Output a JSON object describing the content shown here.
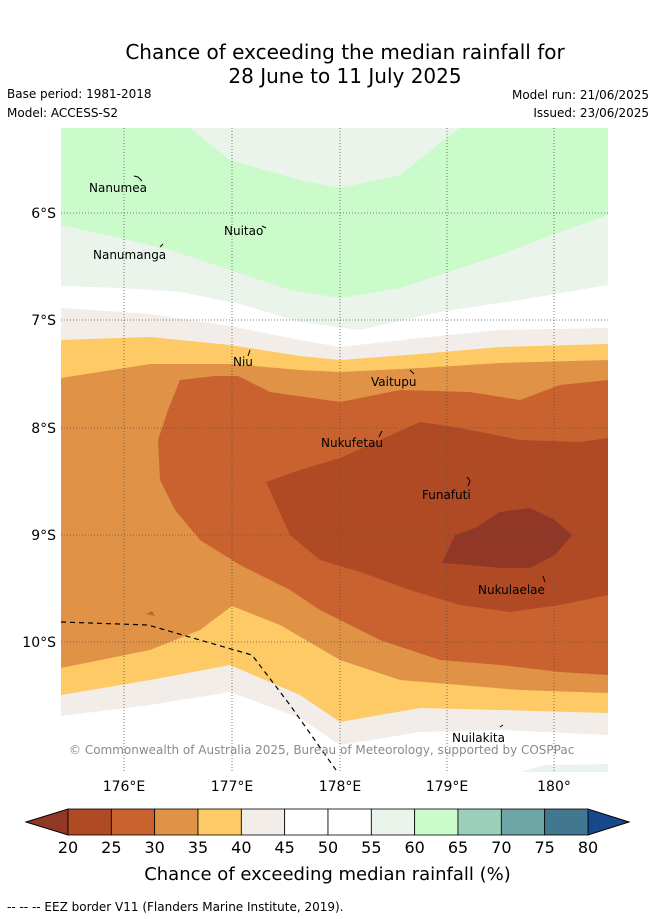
{
  "header": {
    "title_line1": "Chance of exceeding the median rainfall for",
    "title_line2": "28 June to 11 July 2025",
    "base_period": "Base period: 1981-2018",
    "model": "Model: ACCESS-S2",
    "model_run": "Model run: 21/06/2025",
    "issued": "Issued: 23/06/2025"
  },
  "map": {
    "lon_ticks": [
      "176°E",
      "177°E",
      "178°E",
      "179°E",
      "180°"
    ],
    "lat_ticks": [
      "6°S",
      "7°S",
      "8°S",
      "9°S",
      "10°S"
    ],
    "places": [
      "Nanumea",
      "Nuitao",
      "Nanumanga",
      "Niu",
      "Vaitupu",
      "Nukufetau",
      "Funafuti",
      "Nukulaelae",
      "Nuilakita"
    ],
    "copyright": "© Commonwealth of Australia 2025, Bureau of Meteorology, supported by COSPPac"
  },
  "colorbar": {
    "ticks": [
      "20",
      "25",
      "30",
      "35",
      "40",
      "45",
      "50",
      "55",
      "60",
      "65",
      "70",
      "75",
      "80"
    ],
    "colors": [
      "#b04a25",
      "#c9622f",
      "#e09347",
      "#fdca66",
      "#f2ede8",
      "#ffffff",
      "#ffffff",
      "#ebf4ea",
      "#cbfbca",
      "#9ccfb9",
      "#6ea5a6",
      "#41778f"
    ],
    "low_arrow_color": "#913725",
    "high_arrow_color": "#17498a",
    "label": "Chance of exceeding median rainfall (%)"
  },
  "footnote": "--  --  -- EEZ border V11 (Flanders Marine Institute, 2019)."
}
